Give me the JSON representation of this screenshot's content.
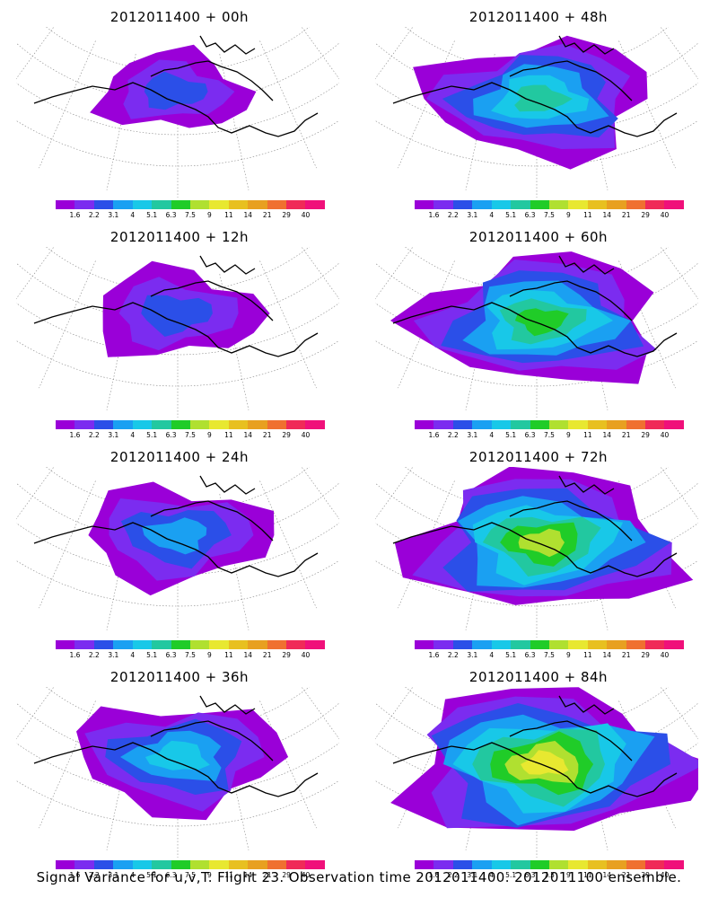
{
  "caption": "Signal Variance for u,v,T. Flight 23. Observation time 2012011400. 2012011100 ensemble.",
  "colorbar": {
    "colors": [
      "#9a00d8",
      "#7b2cf0",
      "#2b4fe8",
      "#1aa0f2",
      "#18c8e8",
      "#22c8a0",
      "#20cc28",
      "#b0e030",
      "#e8e830",
      "#e8c020",
      "#e8a020",
      "#f07030",
      "#f02a58",
      "#f0107a"
    ],
    "ticks": [
      "1.6",
      "2.2",
      "3.1",
      "4",
      "5.1",
      "6.3",
      "7.5",
      "9",
      "11",
      "14",
      "21",
      "29",
      "40"
    ]
  },
  "panels": [
    {
      "title": "2012011400 + 00h",
      "intensity": 0
    },
    {
      "title": "2012011400 + 48h",
      "intensity": 4
    },
    {
      "title": "2012011400 + 12h",
      "intensity": 1
    },
    {
      "title": "2012011400 + 60h",
      "intensity": 5
    },
    {
      "title": "2012011400 + 24h",
      "intensity": 2
    },
    {
      "title": "2012011400 + 72h",
      "intensity": 6
    },
    {
      "title": "2012011400 + 36h",
      "intensity": 3
    },
    {
      "title": "2012011400 + 84h",
      "intensity": 7
    }
  ]
}
